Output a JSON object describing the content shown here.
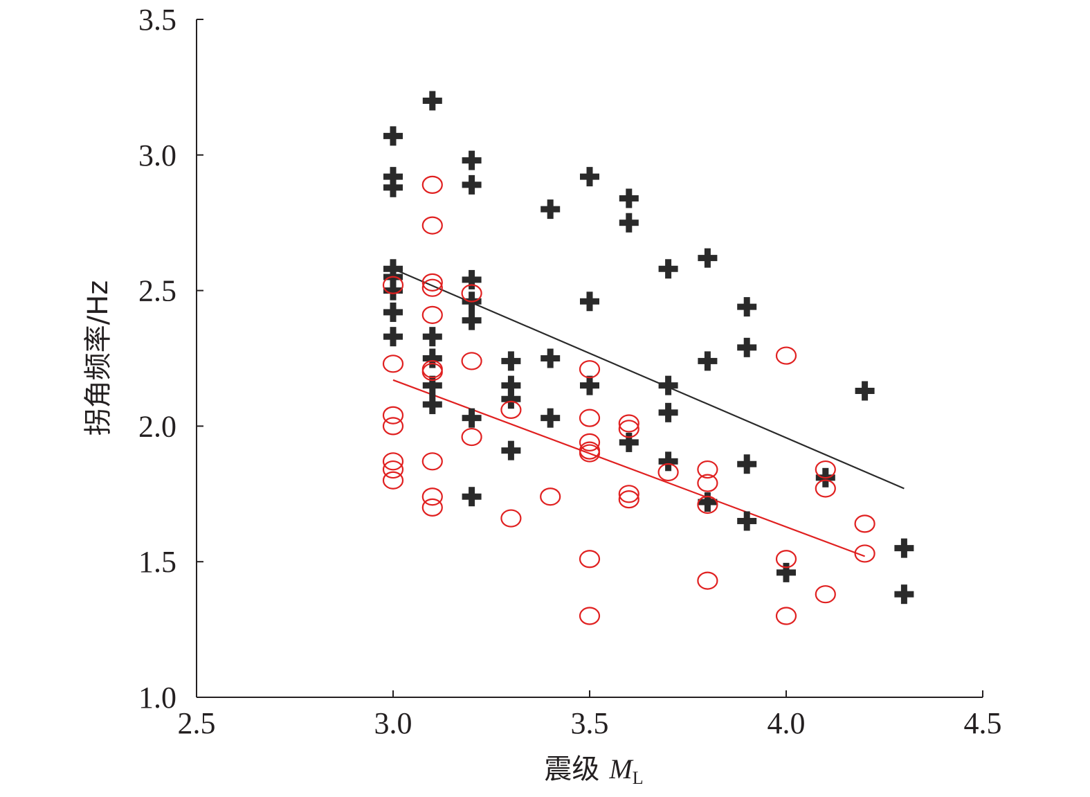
{
  "chart_data": {
    "type": "scatter",
    "title": "",
    "xlabel": "震级",
    "xlabel_symbol": "M",
    "xlabel_subscript": "L",
    "ylabel": "拐角频率/Hz",
    "xlim": [
      2.5,
      4.5
    ],
    "ylim": [
      1.0,
      3.5
    ],
    "xticks": [
      "2.5",
      "3.0",
      "3.5",
      "4.0",
      "4.5"
    ],
    "yticks": [
      "1.0",
      "1.5",
      "2.0",
      "2.5",
      "3.0",
      "3.5"
    ],
    "grid": false,
    "legend": "none",
    "series": [
      {
        "marker": "plus",
        "color": "#2a2a2a",
        "points": [
          [
            3.0,
            3.07
          ],
          [
            3.0,
            2.92
          ],
          [
            3.0,
            2.88
          ],
          [
            3.0,
            2.58
          ],
          [
            3.0,
            2.55
          ],
          [
            3.0,
            2.5
          ],
          [
            3.0,
            2.42
          ],
          [
            3.0,
            2.33
          ],
          [
            3.1,
            3.2
          ],
          [
            3.1,
            2.33
          ],
          [
            3.1,
            2.25
          ],
          [
            3.1,
            2.15
          ],
          [
            3.1,
            2.08
          ],
          [
            3.2,
            2.98
          ],
          [
            3.2,
            2.89
          ],
          [
            3.2,
            2.54
          ],
          [
            3.2,
            2.46
          ],
          [
            3.2,
            2.39
          ],
          [
            3.2,
            2.03
          ],
          [
            3.2,
            1.74
          ],
          [
            3.3,
            2.24
          ],
          [
            3.3,
            2.15
          ],
          [
            3.3,
            2.1
          ],
          [
            3.3,
            1.91
          ],
          [
            3.4,
            2.8
          ],
          [
            3.4,
            2.25
          ],
          [
            3.4,
            2.03
          ],
          [
            3.5,
            2.92
          ],
          [
            3.5,
            2.46
          ],
          [
            3.5,
            2.15
          ],
          [
            3.6,
            2.84
          ],
          [
            3.6,
            2.75
          ],
          [
            3.6,
            1.94
          ],
          [
            3.7,
            2.58
          ],
          [
            3.7,
            2.15
          ],
          [
            3.7,
            2.05
          ],
          [
            3.7,
            1.87
          ],
          [
            3.8,
            2.62
          ],
          [
            3.8,
            2.24
          ],
          [
            3.8,
            1.72
          ],
          [
            3.9,
            2.44
          ],
          [
            3.9,
            2.29
          ],
          [
            3.9,
            1.86
          ],
          [
            3.9,
            1.65
          ],
          [
            4.0,
            1.46
          ],
          [
            4.1,
            1.81
          ],
          [
            4.2,
            2.13
          ],
          [
            4.3,
            1.55
          ],
          [
            4.3,
            1.38
          ]
        ],
        "fit": {
          "from": [
            3.0,
            2.58
          ],
          "to": [
            4.3,
            1.77
          ]
        }
      },
      {
        "marker": "circle",
        "color": "#e02020",
        "points": [
          [
            3.0,
            2.52
          ],
          [
            3.0,
            2.23
          ],
          [
            3.0,
            2.04
          ],
          [
            3.0,
            2.0
          ],
          [
            3.0,
            1.87
          ],
          [
            3.0,
            1.84
          ],
          [
            3.0,
            1.8
          ],
          [
            3.1,
            2.89
          ],
          [
            3.1,
            2.74
          ],
          [
            3.1,
            2.53
          ],
          [
            3.1,
            2.51
          ],
          [
            3.1,
            2.41
          ],
          [
            3.1,
            2.21
          ],
          [
            3.1,
            2.2
          ],
          [
            3.1,
            1.87
          ],
          [
            3.1,
            1.74
          ],
          [
            3.1,
            1.7
          ],
          [
            3.2,
            2.49
          ],
          [
            3.2,
            2.24
          ],
          [
            3.2,
            1.96
          ],
          [
            3.3,
            2.06
          ],
          [
            3.3,
            1.66
          ],
          [
            3.4,
            1.74
          ],
          [
            3.5,
            2.21
          ],
          [
            3.5,
            2.03
          ],
          [
            3.5,
            1.94
          ],
          [
            3.5,
            1.91
          ],
          [
            3.5,
            1.9
          ],
          [
            3.5,
            1.51
          ],
          [
            3.5,
            1.3
          ],
          [
            3.6,
            2.01
          ],
          [
            3.6,
            1.99
          ],
          [
            3.6,
            1.75
          ],
          [
            3.6,
            1.73
          ],
          [
            3.7,
            1.83
          ],
          [
            3.8,
            1.84
          ],
          [
            3.8,
            1.79
          ],
          [
            3.8,
            1.71
          ],
          [
            3.8,
            1.43
          ],
          [
            4.0,
            2.26
          ],
          [
            4.0,
            1.51
          ],
          [
            4.0,
            1.3
          ],
          [
            4.1,
            1.84
          ],
          [
            4.1,
            1.77
          ],
          [
            4.1,
            1.38
          ],
          [
            4.2,
            1.64
          ],
          [
            4.2,
            1.53
          ]
        ],
        "fit": {
          "from": [
            3.0,
            2.17
          ],
          "to": [
            4.2,
            1.52
          ]
        }
      }
    ]
  }
}
